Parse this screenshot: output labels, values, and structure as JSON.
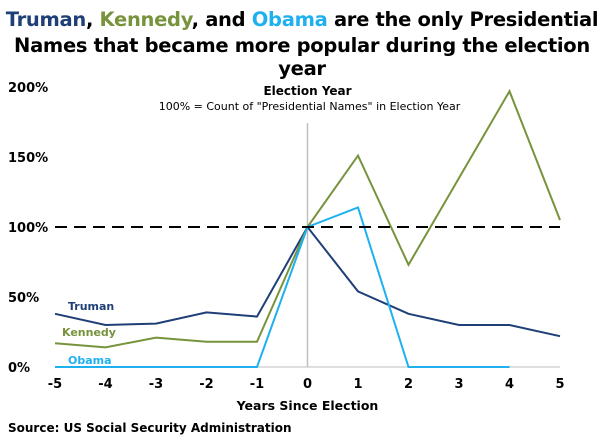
{
  "title": {
    "name1": "Truman",
    "sep1": ", ",
    "name2": "Kennedy",
    "sep2": ", and ",
    "name3": "Obama",
    "rest": " are the only Presidential",
    "line2": "Names that became more popular during the election year"
  },
  "source": "Source: US Social Security Administration",
  "chart_data": {
    "type": "line",
    "annotation_title": "Election Year",
    "annotation_text": "100% = Count of \"Presidential Names\" in Election Year",
    "xlabel": "Years Since Election",
    "ylabel": "",
    "x": [
      -5,
      -4,
      -3,
      -2,
      -1,
      0,
      1,
      2,
      3,
      4,
      5
    ],
    "xlim": [
      -5,
      5
    ],
    "ylim": [
      0,
      200
    ],
    "yticks": [
      "0%",
      "50%",
      "100%",
      "150%",
      "200%"
    ],
    "ytick_values": [
      0,
      50,
      100,
      150,
      200
    ],
    "reference_line": 100,
    "series": [
      {
        "name": "Truman",
        "color": "#1f3f77",
        "values": [
          38,
          30,
          31,
          39,
          36,
          100,
          54,
          38,
          30,
          30,
          22
        ]
      },
      {
        "name": "Kennedy",
        "color": "#77933c",
        "values": [
          17,
          14,
          21,
          18,
          18,
          100,
          151,
          73,
          135,
          197,
          105
        ]
      },
      {
        "name": "Obama",
        "color": "#1fb0f0",
        "values": [
          0,
          0,
          0,
          0,
          0,
          100,
          114,
          0,
          0,
          0,
          null
        ]
      }
    ]
  }
}
